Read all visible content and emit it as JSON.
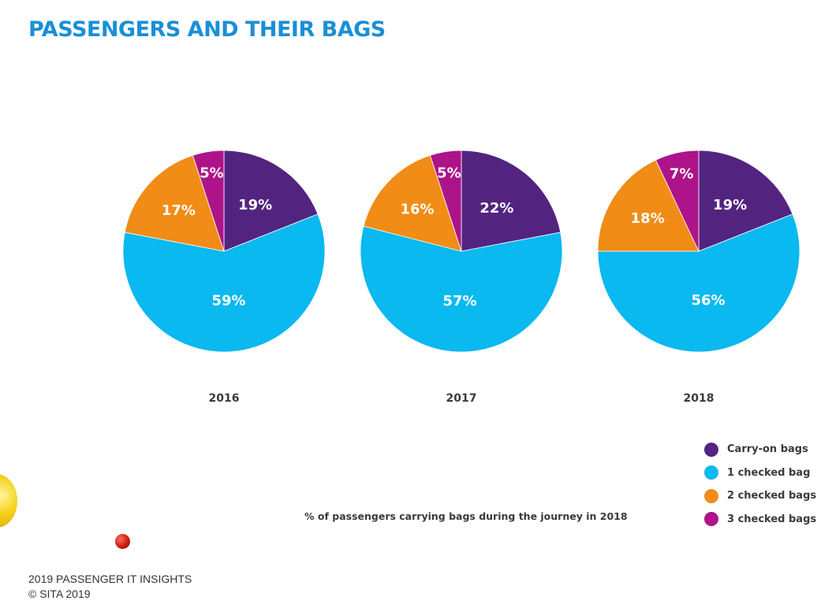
{
  "title": "PASSENGERS AND THEIR BAGS",
  "note": "% of passengers carrying bags during the journey in 2018",
  "footer": {
    "line1": "2019 PASSENGER IT INSIGHTS",
    "line2": "© SITA 2019"
  },
  "colors": {
    "title": "#1a8fd6",
    "carry_on": "#522480",
    "one_checked": "#0ab9ef",
    "two_checked": "#f18c17",
    "three_checked": "#ad1489"
  },
  "legend": [
    {
      "label": "Carry-on bags",
      "color": "#522480"
    },
    {
      "label": "1 checked bag",
      "color": "#0ab9ef"
    },
    {
      "label": "2 checked bags",
      "color": "#f18c17"
    },
    {
      "label": "3 checked bags",
      "color": "#ad1489"
    }
  ],
  "chart_data": [
    {
      "type": "pie",
      "title": "2016",
      "categories": [
        "Carry-on bags",
        "1 checked bag",
        "2 checked bags",
        "3 checked bags"
      ],
      "values": [
        19,
        59,
        17,
        5
      ],
      "labels": [
        "19%",
        "59%",
        "17%",
        "5%"
      ],
      "colors": [
        "#522480",
        "#0ab9ef",
        "#f18c17",
        "#ad1489"
      ]
    },
    {
      "type": "pie",
      "title": "2017",
      "categories": [
        "Carry-on bags",
        "1 checked bag",
        "2 checked bags",
        "3 checked bags"
      ],
      "values": [
        22,
        57,
        16,
        5
      ],
      "labels": [
        "22%",
        "57%",
        "16%",
        "5%"
      ],
      "colors": [
        "#522480",
        "#0ab9ef",
        "#f18c17",
        "#ad1489"
      ]
    },
    {
      "type": "pie",
      "title": "2018",
      "categories": [
        "Carry-on bags",
        "1 checked bag",
        "2 checked bags",
        "3 checked bags"
      ],
      "values": [
        19,
        56,
        18,
        7
      ],
      "labels": [
        "19%",
        "56%",
        "18%",
        "7%"
      ],
      "colors": [
        "#522480",
        "#0ab9ef",
        "#f18c17",
        "#ad1489"
      ]
    }
  ]
}
